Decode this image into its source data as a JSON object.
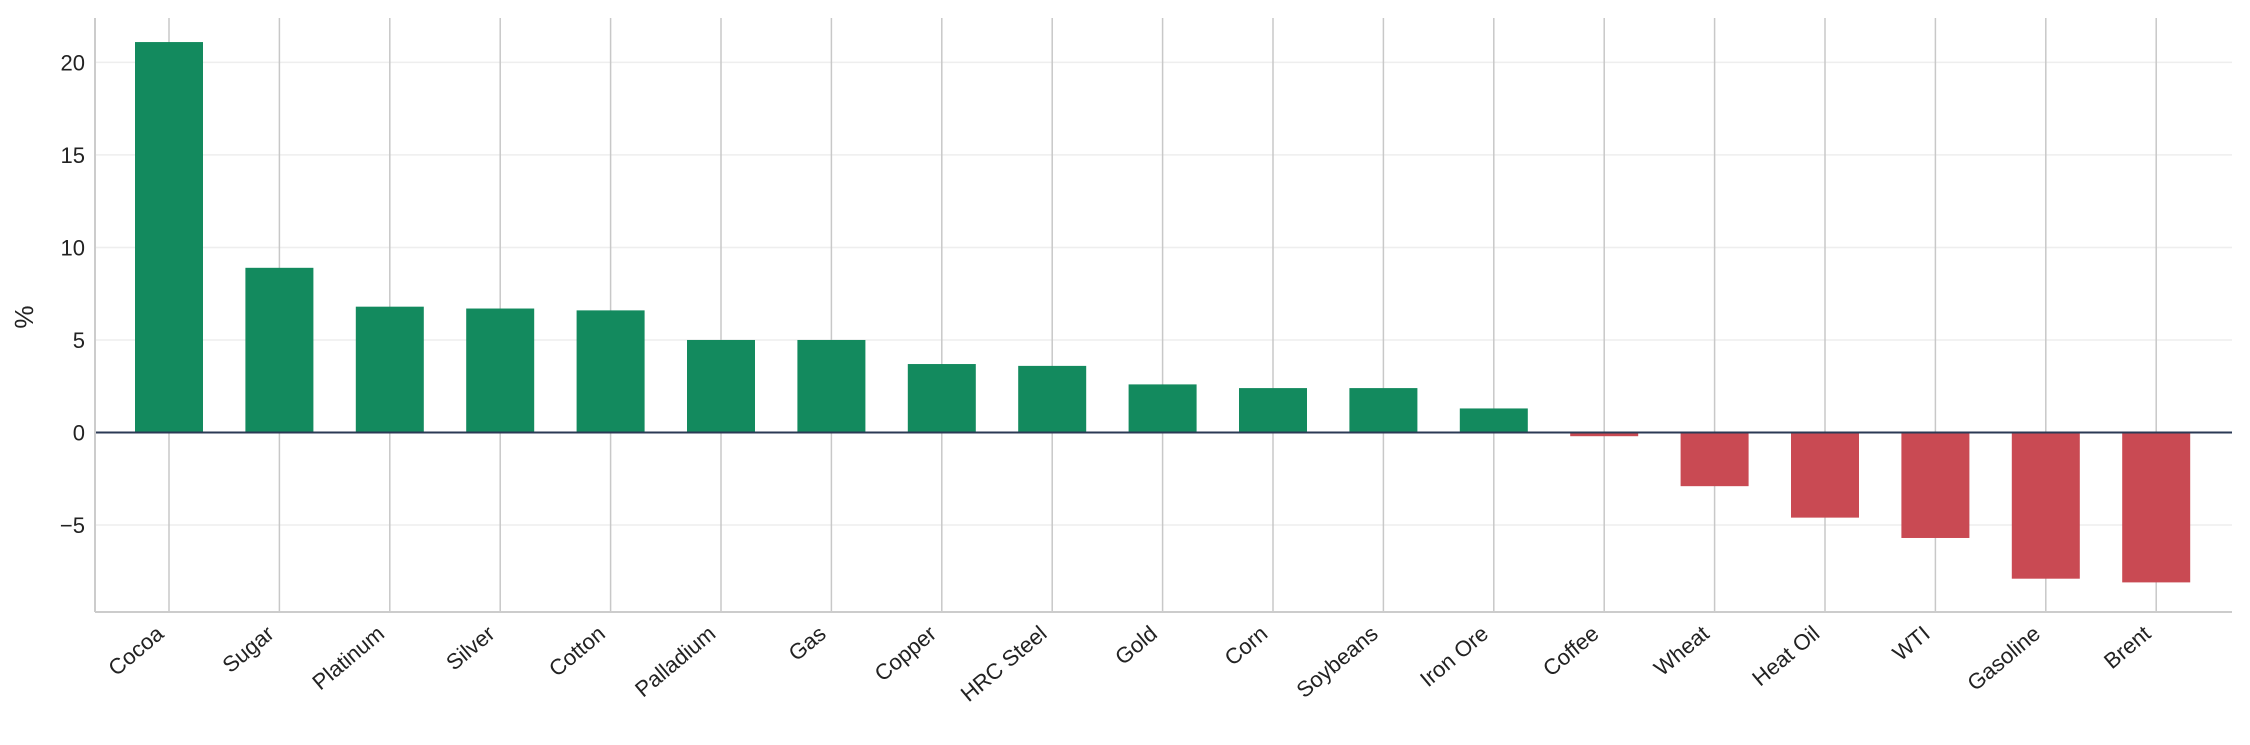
{
  "chart_data": {
    "type": "bar",
    "title": "",
    "xlabel": "",
    "ylabel": "%",
    "ylim": [
      -9.7,
      22.4
    ],
    "yticks": [
      -5,
      0,
      5,
      10,
      15,
      20
    ],
    "ytick_labels": [
      "−5",
      "0",
      "5",
      "10",
      "15",
      "20"
    ],
    "grid": true,
    "categories": [
      "Cocoa",
      "Sugar",
      "Platinum",
      "Silver",
      "Cotton",
      "Palladium",
      "Gas",
      "Copper",
      "HRC Steel",
      "Gold",
      "Corn",
      "Soybeans",
      "Iron Ore",
      "Coffee",
      "Wheat",
      "Heat Oil",
      "WTI",
      "Gasoline",
      "Brent"
    ],
    "values": [
      21.1,
      8.9,
      6.8,
      6.7,
      6.6,
      5.0,
      5.0,
      3.7,
      3.6,
      2.6,
      2.4,
      2.4,
      1.3,
      -0.2,
      -2.9,
      -4.6,
      -5.7,
      -7.9,
      -8.1
    ],
    "colors": {
      "positive": "#138a5e",
      "negative": "#c94a53",
      "zero_line": "#2b3a55"
    }
  }
}
